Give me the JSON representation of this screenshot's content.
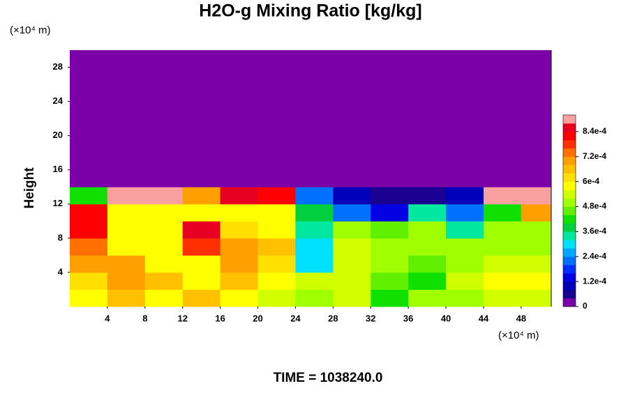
{
  "chart_data": {
    "type": "heatmap",
    "title": "H2O-g Mixing Ratio [kg/kg]",
    "subtitle": "TIME = 1038240.0",
    "ylabel": "Height",
    "xunit": "(×10⁴ m)",
    "yunit": "(×10⁴ m)",
    "xlim": [
      0,
      51.2
    ],
    "ylim": [
      0,
      30
    ],
    "xticks": [
      4,
      8,
      12,
      16,
      20,
      24,
      28,
      32,
      36,
      40,
      44,
      48
    ],
    "yticks": [
      4,
      8,
      12,
      16,
      20,
      24,
      28
    ],
    "xbins": [
      0,
      4,
      8,
      12,
      16,
      20,
      24,
      28,
      32,
      36,
      40,
      44,
      48,
      51.2
    ],
    "ybins": [
      0,
      2,
      4,
      6,
      8,
      10,
      12,
      14,
      30
    ],
    "z": [
      [
        0.0006,
        0.00065,
        0.0006,
        0.00065,
        0.0006,
        0.00055,
        0.0005,
        0.00055,
        0.0004,
        0.00048,
        0.0005,
        0.00055,
        0.00055
      ],
      [
        0.00062,
        0.0007,
        0.00065,
        0.0006,
        0.00065,
        0.0006,
        0.00055,
        0.00055,
        0.00045,
        0.0004,
        0.00055,
        0.0006,
        0.00058
      ],
      [
        0.0007,
        0.0007,
        0.0006,
        0.0006,
        0.00068,
        0.00062,
        0.0003,
        0.00055,
        0.0005,
        0.00045,
        0.0005,
        0.00055,
        0.00055
      ],
      [
        0.00075,
        0.00058,
        0.0006,
        0.00078,
        0.00068,
        0.00065,
        0.0003,
        0.00055,
        0.0005,
        0.00048,
        0.0005,
        0.00052,
        0.0005
      ],
      [
        0.0008,
        0.00058,
        0.00058,
        0.00085,
        0.00062,
        0.0006,
        0.00035,
        0.0005,
        0.00045,
        0.0005,
        0.00035,
        0.0005,
        0.00048
      ],
      [
        0.00082,
        0.0006,
        0.00058,
        0.0006,
        0.00058,
        0.0006,
        0.00038,
        0.0002,
        0.00015,
        0.00035,
        0.0002,
        0.0004,
        0.0007
      ],
      [
        0.0004,
        0.0009,
        0.0009,
        0.0007,
        0.00085,
        0.0008,
        0.0002,
        0.0001,
        5e-05,
        5e-05,
        0.0001,
        0.0009,
        0.0009
      ],
      [
        0,
        0,
        0,
        0,
        0,
        0,
        0,
        0,
        0,
        0,
        0,
        0,
        0
      ]
    ],
    "clim": [
      0,
      0.00092
    ],
    "cticks": [
      0,
      {
        "value": 0.00012,
        "label": "1.2e-4"
      },
      {
        "value": 0.00024,
        "label": "2.4e-4"
      },
      {
        "value": 0.00036,
        "label": "3.6e-4"
      },
      {
        "value": 0.00048,
        "label": "4.8e-4"
      },
      {
        "value": 0.0006,
        "label": "6e-4"
      },
      {
        "value": 0.00072,
        "label": "7.2e-4"
      },
      {
        "value": 0.00084,
        "label": "8.4e-4"
      }
    ],
    "colors": [
      "#7a00a8",
      "#1a0090",
      "#0000b8",
      "#0000e0",
      "#0030ff",
      "#0070ff",
      "#00a8ff",
      "#00e0ff",
      "#00e8a0",
      "#00d040",
      "#10e000",
      "#60f000",
      "#a0ff00",
      "#d0ff00",
      "#ffff00",
      "#ffe000",
      "#ffc000",
      "#ffa000",
      "#ff7000",
      "#ff3000",
      "#ff0000",
      "#e80020",
      "#f8a0a0"
    ]
  }
}
